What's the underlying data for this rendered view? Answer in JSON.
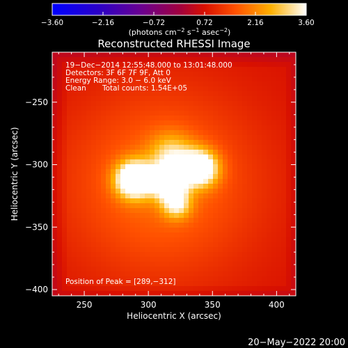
{
  "chart_data": {
    "type": "heatmap",
    "title": "Reconstructed RHESSI Image",
    "xlabel": "Heliocentric X (arcsec)",
    "ylabel": "Heliocentric Y (arcsec)",
    "xlim": [
      225,
      415
    ],
    "ylim": [
      -405,
      -210
    ],
    "x_ticks": [
      250,
      300,
      350,
      400
    ],
    "x_tick_labels": [
      "250",
      "300",
      "350",
      "400"
    ],
    "y_ticks": [
      -250,
      -300,
      -350,
      -400
    ],
    "y_tick_labels": [
      "−250",
      "−300",
      "−350",
      "−400"
    ],
    "colorbar": {
      "ticks": [
        -3.6,
        -2.16,
        -0.72,
        0.72,
        2.16,
        3.6
      ],
      "tick_labels": [
        "−3.60",
        "−2.16",
        "−0.72",
        "0.72",
        "2.16",
        "3.60"
      ],
      "unit_text": "(photons cm",
      "unit_sup1": "−2",
      "unit_mid": " s",
      "unit_sup2": "−1",
      "unit_mid2": " asec",
      "unit_sup3": "−2",
      "unit_end": ")"
    },
    "annotations": {
      "time": "19−Dec−2014 12:55:48.000 to 13:01:48.000",
      "detectors": "Detectors: 3F 6F 7F 9F, Att 0",
      "energy": "Energy Range: 3.0 − 6.0 keV",
      "clean": "Clean",
      "counts": "Total counts: 1.54E+05",
      "peak": "Position of Peak = [289,−312]"
    },
    "sources": [
      {
        "x": 289,
        "y": -312,
        "peak": 3.6,
        "sigma": 10
      },
      {
        "x": 316,
        "y": -314,
        "peak": 3.3,
        "sigma": 9
      },
      {
        "x": 340,
        "y": -303,
        "peak": 3.2,
        "sigma": 10
      },
      {
        "x": 322,
        "y": -332,
        "peak": 1.8,
        "sigma": 8
      },
      {
        "x": 318,
        "y": -292,
        "peak": 1.5,
        "sigma": 12
      },
      {
        "x": 310,
        "y": -315,
        "peak": 1.2,
        "sigma": 55
      }
    ],
    "background_level": 0.72
  },
  "footer": {
    "date": "20−May−2022 20:00"
  }
}
